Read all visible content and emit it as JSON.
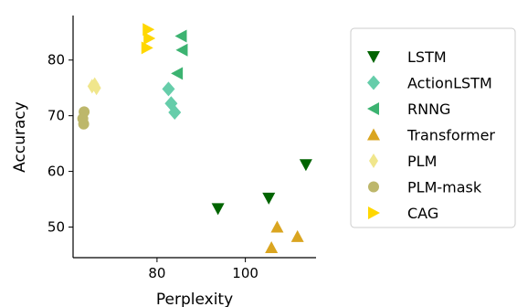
{
  "chart_data": {
    "type": "scatter",
    "title": "",
    "xlabel": "Perplexity",
    "ylabel": "Accuracy",
    "xlim": [
      61,
      116
    ],
    "ylim": [
      44.5,
      88
    ],
    "xticks": [
      80,
      100
    ],
    "yticks": [
      50,
      60,
      70,
      80
    ],
    "grid": false,
    "legend_position": "right",
    "series": [
      {
        "name": "LSTM",
        "color": "#006400",
        "marker": "triangle-down",
        "points": [
          {
            "x": 93.8,
            "y": 53.3
          },
          {
            "x": 105.3,
            "y": 55.2
          },
          {
            "x": 113.7,
            "y": 61.2
          }
        ]
      },
      {
        "name": "ActionLSTM",
        "color": "#66cdaa",
        "marker": "diamond",
        "points": [
          {
            "x": 82.6,
            "y": 74.8
          },
          {
            "x": 83.2,
            "y": 72.2
          },
          {
            "x": 84.0,
            "y": 70.6
          }
        ]
      },
      {
        "name": "RNNG",
        "color": "#3cb371",
        "marker": "triangle-left",
        "points": [
          {
            "x": 85.5,
            "y": 84.3
          },
          {
            "x": 85.7,
            "y": 81.8
          },
          {
            "x": 84.6,
            "y": 77.6
          }
        ]
      },
      {
        "name": "Transformer",
        "color": "#daa520",
        "marker": "triangle-up",
        "points": [
          {
            "x": 105.9,
            "y": 46.3
          },
          {
            "x": 107.2,
            "y": 50.0
          },
          {
            "x": 111.8,
            "y": 48.3
          }
        ]
      },
      {
        "name": "PLM",
        "color": "#f0e68c",
        "marker": "thin-diamond",
        "points": [
          {
            "x": 65.3,
            "y": 75.3
          },
          {
            "x": 65.9,
            "y": 75.6
          },
          {
            "x": 66.3,
            "y": 75.0
          }
        ]
      },
      {
        "name": "PLM-mask",
        "color": "#bdb76b",
        "marker": "circle",
        "points": [
          {
            "x": 63.5,
            "y": 70.7
          },
          {
            "x": 63.2,
            "y": 69.5
          },
          {
            "x": 63.4,
            "y": 68.5
          }
        ]
      },
      {
        "name": "CAG",
        "color": "#ffd700",
        "marker": "triangle-right",
        "points": [
          {
            "x": 78.0,
            "y": 85.5
          },
          {
            "x": 78.2,
            "y": 83.9
          },
          {
            "x": 77.7,
            "y": 82.2
          }
        ]
      }
    ]
  }
}
